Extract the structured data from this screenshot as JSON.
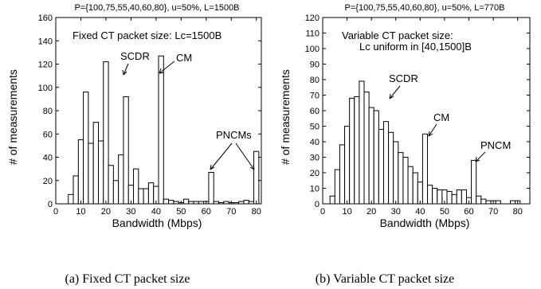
{
  "chart_data": [
    {
      "type": "bar",
      "title": "P={100,75,55,40,60,80}, u=50%, L=1500B",
      "xlabel": "Bandwidth (Mbps)",
      "ylabel": "# of measurements",
      "xlim": [
        0,
        82
      ],
      "ylim": [
        0,
        160
      ],
      "xticks": [
        "0",
        "10",
        "20",
        "30",
        "40",
        "50",
        "60",
        "70",
        "80"
      ],
      "yticks": [
        "0",
        "20",
        "40",
        "60",
        "80",
        "100",
        "120",
        "140",
        "160"
      ],
      "bin_width_mbps": 2,
      "x": [
        6,
        8,
        10,
        12,
        14,
        16,
        18,
        20,
        22,
        24,
        26,
        28,
        30,
        32,
        34,
        36,
        38,
        40,
        42,
        44,
        46,
        48,
        50,
        52,
        54,
        56,
        58,
        60,
        62,
        64,
        66,
        68,
        70,
        72,
        74,
        76,
        78,
        80
      ],
      "values": [
        8,
        24,
        55,
        96,
        52,
        70,
        54,
        122,
        33,
        20,
        42,
        92,
        16,
        30,
        13,
        13,
        18,
        15,
        127,
        4,
        3,
        2,
        1,
        4,
        2,
        2,
        2,
        2,
        27,
        2,
        1,
        2,
        1,
        1,
        2,
        3,
        2,
        45
      ],
      "annotations": [
        {
          "text": "Fixed CT packet size: Lc=1500B"
        },
        {
          "text": "SCDR"
        },
        {
          "text": "CM"
        },
        {
          "text": "PNCMs"
        }
      ],
      "caption": "(a) Fixed CT packet size"
    },
    {
      "type": "bar",
      "title": "P={100,75,55,40,60,80}, u=50%, L=770B",
      "xlabel": "Bandwidth (Mbps)",
      "ylabel": "# of measurements",
      "xlim": [
        0,
        85
      ],
      "ylim": [
        0,
        120
      ],
      "xticks": [
        "0",
        "10",
        "20",
        "30",
        "40",
        "50",
        "60",
        "70",
        "80"
      ],
      "yticks": [
        "0",
        "10",
        "20",
        "30",
        "40",
        "50",
        "60",
        "70",
        "80",
        "90",
        "100",
        "110",
        "120"
      ],
      "bin_width_mbps": 2,
      "x": [
        4,
        6,
        8,
        10,
        12,
        14,
        16,
        18,
        20,
        22,
        24,
        26,
        28,
        30,
        32,
        34,
        36,
        38,
        40,
        42,
        44,
        46,
        48,
        50,
        52,
        54,
        56,
        58,
        60,
        62,
        64,
        66,
        68,
        70,
        72,
        78,
        80
      ],
      "values": [
        5,
        22,
        38,
        50,
        68,
        69,
        79,
        72,
        62,
        60,
        48,
        53,
        46,
        40,
        33,
        30,
        24,
        20,
        14,
        45,
        12,
        10,
        9,
        9,
        8,
        6,
        9,
        9,
        4,
        28,
        5,
        3,
        2,
        2,
        2,
        2,
        2
      ],
      "annotations": [
        {
          "text": "Variable CT packet size:"
        },
        {
          "text": "Lc uniform in [40,1500]B"
        },
        {
          "text": "SCDR"
        },
        {
          "text": "CM"
        },
        {
          "text": "PNCM"
        }
      ],
      "caption": "(b) Variable CT packet size"
    }
  ]
}
